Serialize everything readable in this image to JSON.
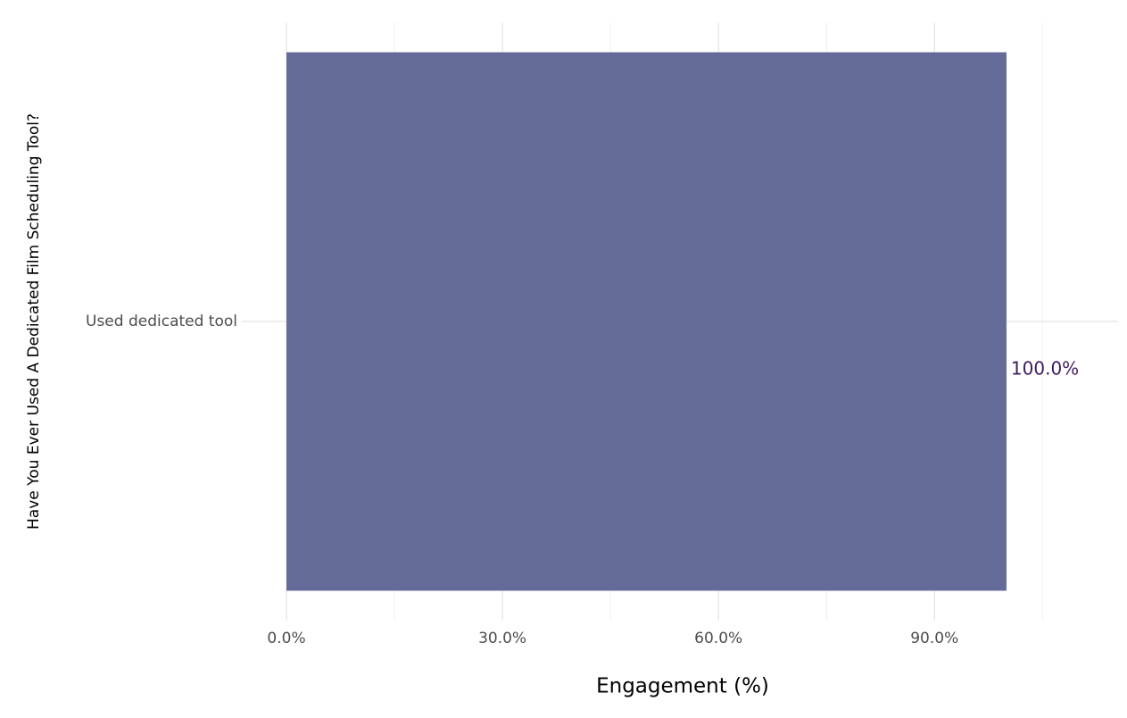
{
  "chart_data": {
    "type": "bar",
    "orientation": "horizontal",
    "x_label": "Engagement (%)",
    "y_label": "Have You Ever Used A Dedicated Film Scheduling Tool?",
    "categories": [
      "Used dedicated tool"
    ],
    "values": [
      100
    ],
    "value_labels": [
      "100.0%"
    ],
    "color": "#656b99",
    "value_label_color": "#3f1a5c",
    "xlim": [
      -6.2,
      115.5
    ],
    "xticks": [
      {
        "value": 0,
        "label": "0.0%"
      },
      {
        "value": 30,
        "label": "30.0%"
      },
      {
        "value": 60,
        "label": "60.0%"
      },
      {
        "value": 90,
        "label": "90.0%"
      }
    ],
    "x_minor_ticks": [
      15,
      45,
      75,
      105
    ],
    "grid": true
  }
}
